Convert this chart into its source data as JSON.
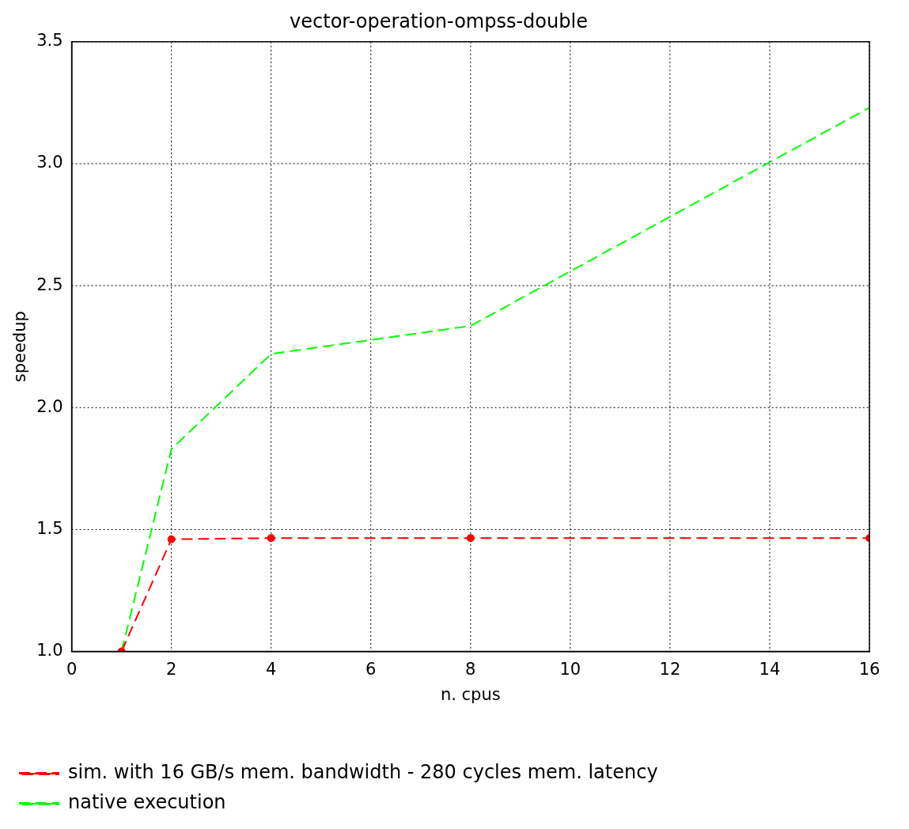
{
  "chart_data": {
    "type": "line",
    "title": "vector-operation-ompss-double",
    "xlabel": "n. cpus",
    "ylabel": "speedup",
    "x": [
      1,
      2,
      4,
      8,
      16
    ],
    "series": [
      {
        "name": "sim. with 16 GB/s mem. bandwidth - 280 cycles mem. latency",
        "color": "#ff0000",
        "values": [
          1.0,
          1.46,
          1.465,
          1.465,
          1.465
        ],
        "marker": "circle",
        "line_style": "dashed"
      },
      {
        "name": "native execution",
        "color": "#00ff00",
        "values": [
          1.0,
          1.83,
          2.22,
          2.335,
          3.23
        ],
        "marker": "none",
        "line_style": "dashed"
      }
    ],
    "xlim": [
      0,
      16
    ],
    "xticks": [
      0,
      2,
      4,
      6,
      8,
      10,
      12,
      14,
      16
    ],
    "ylim": [
      1.0,
      3.5
    ],
    "yticks": [
      {
        "value": 1.0,
        "label": "1.0"
      },
      {
        "value": 1.5,
        "label": "1.5"
      },
      {
        "value": 2.0,
        "label": "2.0"
      },
      {
        "value": 2.5,
        "label": "2.5"
      },
      {
        "value": 3.0,
        "label": "3.0"
      },
      {
        "value": 3.5,
        "label": "3.5"
      }
    ],
    "grid": true,
    "legend": "bottom"
  }
}
